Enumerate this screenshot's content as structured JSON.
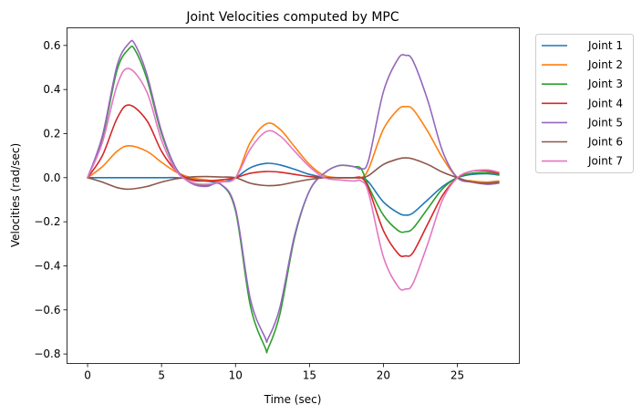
{
  "chart_data": {
    "type": "line",
    "title": "Joint Velocities computed by MPC",
    "xlabel": "Time (sec)",
    "ylabel": "Velocities (rad/sec)",
    "xlim": [
      -1.39,
      29.19
    ],
    "ylim": [
      -0.843,
      0.68
    ],
    "xticks": [
      0,
      5,
      10,
      15,
      20,
      25
    ],
    "xtick_labels": [
      "0",
      "5",
      "10",
      "15",
      "20",
      "25"
    ],
    "yticks": [
      -0.8,
      -0.6,
      -0.4,
      -0.2,
      0.0,
      0.2,
      0.4,
      0.6
    ],
    "ytick_labels": [
      "−0.8",
      "−0.6",
      "−0.4",
      "−0.2",
      "0.0",
      "0.2",
      "0.4",
      "0.6"
    ],
    "grid": false,
    "legend_position": "outside-top-right",
    "series": [
      {
        "name": "Joint 1",
        "color": "#1f77b4",
        "x": [
          0,
          1,
          2,
          2.8,
          4,
          5,
          6,
          7,
          8,
          9,
          10,
          11,
          12.1,
          13,
          14,
          15,
          16,
          17,
          18,
          18.5,
          19,
          20,
          21,
          21.5,
          22,
          23,
          24,
          25,
          26,
          27,
          27.8
        ],
        "y": [
          0,
          0,
          0,
          0,
          0,
          0,
          0,
          -0.005,
          -0.015,
          -0.02,
          0,
          0.045,
          0.065,
          0.058,
          0.038,
          0.015,
          0.002,
          0,
          0,
          0,
          -0.02,
          -0.11,
          -0.16,
          -0.17,
          -0.16,
          -0.1,
          -0.04,
          0,
          0.015,
          0.018,
          0.012
        ]
      },
      {
        "name": "Joint 2",
        "color": "#ff7f0e",
        "x": [
          0,
          1,
          2,
          2.8,
          4,
          5,
          6,
          7,
          8,
          9,
          10,
          11,
          12.1,
          13,
          14,
          15,
          16,
          17,
          18,
          18.5,
          19,
          20,
          21,
          21.5,
          22,
          23,
          24,
          25,
          26,
          27,
          27.8
        ],
        "y": [
          0,
          0.05,
          0.12,
          0.145,
          0.12,
          0.07,
          0.025,
          0,
          -0.01,
          -0.015,
          0,
          0.16,
          0.245,
          0.22,
          0.14,
          0.06,
          0.01,
          0,
          0,
          0,
          0.04,
          0.22,
          0.31,
          0.322,
          0.31,
          0.21,
          0.09,
          0,
          -0.015,
          -0.02,
          -0.015
        ]
      },
      {
        "name": "Joint 3",
        "color": "#2ca02c",
        "x": [
          0,
          1,
          2,
          2.8,
          3.2,
          4,
          5,
          6,
          7,
          8,
          9,
          10,
          11,
          12,
          12.2,
          13,
          14,
          15,
          16,
          17,
          18,
          18.5,
          19,
          20,
          21,
          21.5,
          22,
          23,
          24,
          25,
          26,
          27,
          27.8
        ],
        "y": [
          0,
          0.18,
          0.49,
          0.585,
          0.58,
          0.45,
          0.2,
          0.04,
          -0.02,
          -0.035,
          -0.03,
          -0.15,
          -0.58,
          -0.77,
          -0.775,
          -0.62,
          -0.27,
          -0.06,
          0.02,
          0.055,
          0.05,
          0.04,
          -0.04,
          -0.17,
          -0.24,
          -0.245,
          -0.23,
          -0.14,
          -0.05,
          0,
          0.02,
          0.022,
          0.015
        ]
      },
      {
        "name": "Joint 4",
        "color": "#d62728",
        "x": [
          0,
          1,
          2,
          2.8,
          4,
          5,
          6,
          7,
          8,
          9,
          10,
          11,
          12.1,
          13,
          14,
          15,
          16,
          17,
          18,
          18.5,
          19,
          20,
          21,
          21.5,
          22,
          23,
          24,
          25,
          26,
          27,
          27.8
        ],
        "y": [
          0,
          0.1,
          0.27,
          0.33,
          0.26,
          0.12,
          0.03,
          -0.01,
          -0.015,
          -0.01,
          0,
          0.02,
          0.028,
          0.025,
          0.015,
          0.005,
          0,
          0,
          0,
          0,
          -0.05,
          -0.24,
          -0.345,
          -0.355,
          -0.34,
          -0.21,
          -0.08,
          0,
          0.03,
          0.03,
          0.02
        ]
      },
      {
        "name": "Joint 5",
        "color": "#9467bd",
        "x": [
          0,
          1,
          2,
          2.8,
          3.2,
          4,
          5,
          6,
          7,
          8,
          9,
          10,
          11,
          12,
          12.2,
          13,
          14,
          15,
          16,
          17,
          18,
          18.5,
          19,
          20,
          21,
          21.5,
          22,
          23,
          24,
          25,
          26,
          27,
          27.8
        ],
        "y": [
          0,
          0.19,
          0.51,
          0.61,
          0.605,
          0.47,
          0.21,
          0.04,
          -0.025,
          -0.04,
          -0.03,
          -0.14,
          -0.55,
          -0.725,
          -0.73,
          -0.59,
          -0.26,
          -0.06,
          0.02,
          0.055,
          0.05,
          0.04,
          0.08,
          0.39,
          0.54,
          0.555,
          0.53,
          0.35,
          0.12,
          0,
          -0.02,
          -0.03,
          -0.025
        ]
      },
      {
        "name": "Joint 6",
        "color": "#8c564b",
        "x": [
          0,
          1,
          2,
          2.8,
          4,
          5,
          6,
          7,
          8,
          9,
          10,
          11,
          12.1,
          13,
          14,
          15,
          16,
          17,
          18,
          18.5,
          19,
          20,
          21,
          21.5,
          22,
          23,
          24,
          25,
          26,
          27,
          27.8
        ],
        "y": [
          0,
          -0.02,
          -0.045,
          -0.052,
          -0.04,
          -0.02,
          -0.005,
          0.003,
          0.005,
          0.003,
          0,
          -0.025,
          -0.036,
          -0.033,
          -0.02,
          -0.008,
          0,
          0,
          0,
          0,
          0.01,
          0.06,
          0.085,
          0.09,
          0.085,
          0.06,
          0.025,
          0,
          -0.02,
          -0.025,
          -0.02
        ]
      },
      {
        "name": "Joint 7",
        "color": "#e377c2",
        "x": [
          0,
          1,
          2,
          2.8,
          4,
          5,
          6,
          7,
          8,
          9,
          10,
          11,
          12.1,
          13,
          14,
          15,
          16,
          17,
          18,
          18.5,
          19,
          20,
          21,
          21.5,
          22,
          23,
          24,
          25,
          26,
          27,
          27.8
        ],
        "y": [
          0,
          0.16,
          0.42,
          0.495,
          0.39,
          0.17,
          0.03,
          -0.02,
          -0.03,
          -0.02,
          0,
          0.13,
          0.21,
          0.19,
          0.12,
          0.05,
          0,
          -0.01,
          -0.015,
          -0.015,
          -0.07,
          -0.36,
          -0.495,
          -0.505,
          -0.48,
          -0.3,
          -0.1,
          0,
          0.03,
          0.035,
          0.025
        ]
      }
    ]
  }
}
